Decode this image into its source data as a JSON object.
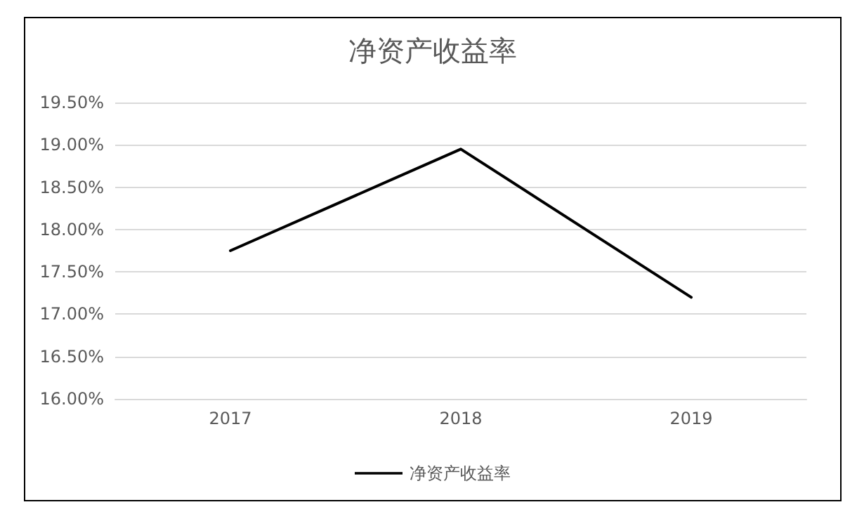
{
  "chart_data": {
    "type": "line",
    "title": "净资产收益率",
    "categories": [
      "2017",
      "2018",
      "2019"
    ],
    "series": [
      {
        "name": "净资产收益率",
        "color": "#000000",
        "values": [
          17.75,
          18.95,
          17.2
        ]
      }
    ],
    "ylim": [
      16,
      19.5
    ],
    "yticks": [
      {
        "value": 16,
        "label": "16.00%"
      },
      {
        "value": 16.5,
        "label": "16.50%"
      },
      {
        "value": 17,
        "label": "17.00%"
      },
      {
        "value": 17.5,
        "label": "17.50%"
      },
      {
        "value": 18,
        "label": "18.00%"
      },
      {
        "value": 18.5,
        "label": "18.50%"
      },
      {
        "value": 19,
        "label": "19.00%"
      },
      {
        "value": 19.5,
        "label": "19.50%"
      }
    ],
    "grid": "y",
    "legend": "bottom",
    "marker": "none",
    "line_style": "solid"
  }
}
